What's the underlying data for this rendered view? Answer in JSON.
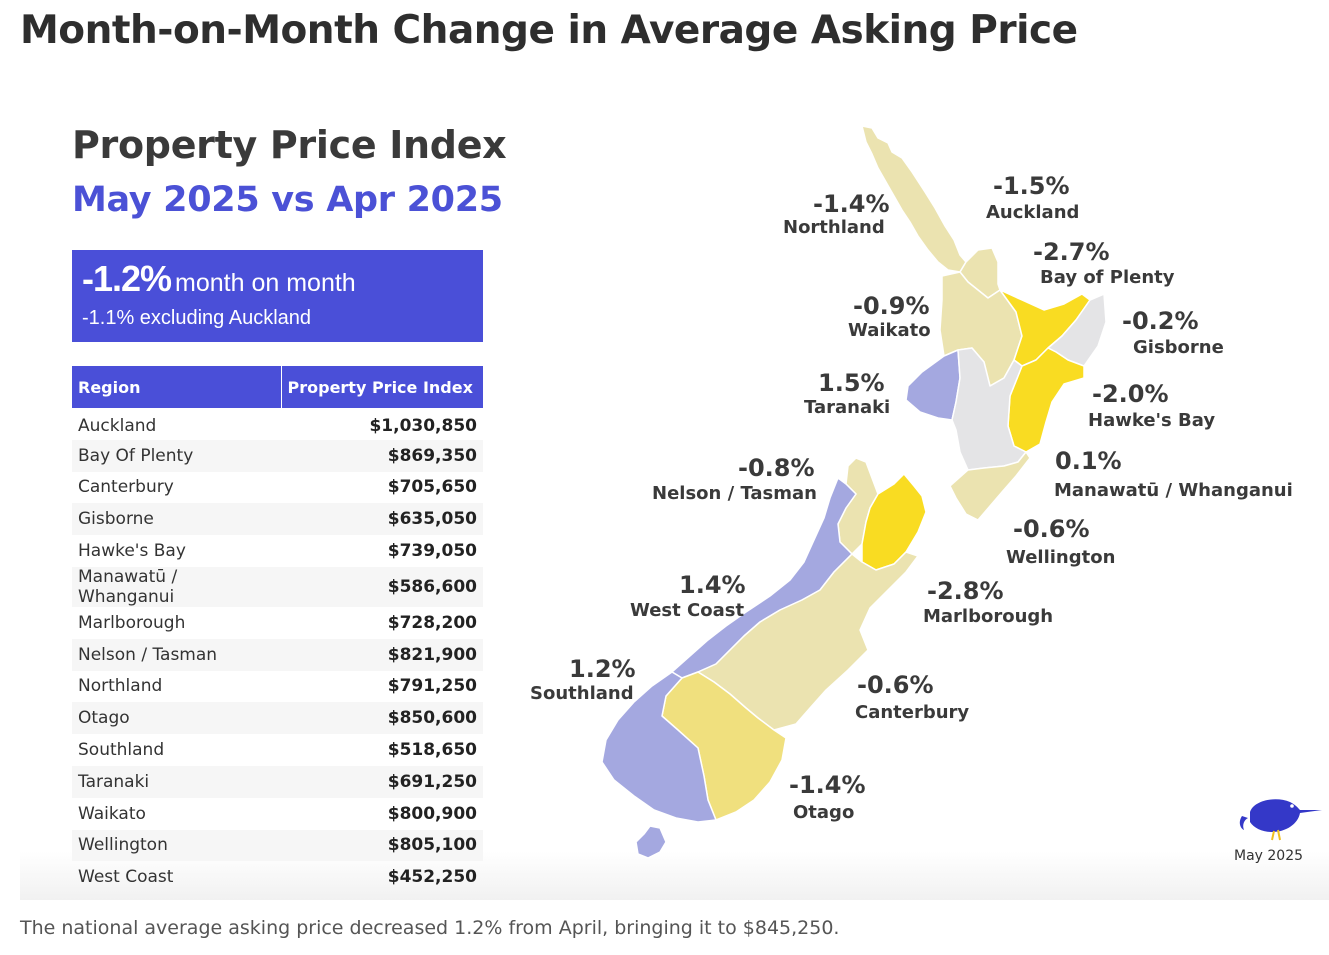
{
  "page": {
    "title": "Month-on-Month Change in Average Asking Price",
    "caption": "The national average asking price decreased 1.2% from April, bringing it to $845,250."
  },
  "infographic": {
    "title": "Property Price Index",
    "subtitle": "May 2025 vs Apr 2025",
    "summary": {
      "headline_value": "-1.2%",
      "headline_text": "month on month",
      "sub_text": "-1.1% excluding Auckland"
    },
    "table": {
      "headers": [
        "Region",
        "Property Price Index"
      ],
      "rows": [
        {
          "region": "Auckland",
          "value": "$1,030,850"
        },
        {
          "region": "Bay Of Plenty",
          "value": "$869,350"
        },
        {
          "region": "Canterbury",
          "value": "$705,650"
        },
        {
          "region": "Gisborne",
          "value": "$635,050"
        },
        {
          "region": "Hawke's Bay",
          "value": "$739,050"
        },
        {
          "region": "Manawatū / Whanganui",
          "value": "$586,600"
        },
        {
          "region": "Marlborough",
          "value": "$728,200"
        },
        {
          "region": "Nelson / Tasman",
          "value": "$821,900"
        },
        {
          "region": "Northland",
          "value": "$791,250"
        },
        {
          "region": "Otago",
          "value": "$850,600"
        },
        {
          "region": "Southland",
          "value": "$518,650"
        },
        {
          "region": "Taranaki",
          "value": "$691,250"
        },
        {
          "region": "Waikato",
          "value": "$800,900"
        },
        {
          "region": "Wellington",
          "value": "$805,100"
        },
        {
          "region": "West Coast",
          "value": "$452,250"
        }
      ]
    },
    "logo_date": "May 2025"
  },
  "map_labels": {
    "northland": {
      "pct": "-1.4%",
      "name": "Northland"
    },
    "auckland": {
      "pct": "-1.5%",
      "name": "Auckland"
    },
    "bay_of_plenty": {
      "pct": "-2.7%",
      "name": "Bay of Plenty"
    },
    "waikato": {
      "pct": "-0.9%",
      "name": "Waikato"
    },
    "gisborne": {
      "pct": "-0.2%",
      "name": "Gisborne"
    },
    "taranaki": {
      "pct": "1.5%",
      "name": "Taranaki"
    },
    "hawkes_bay": {
      "pct": "-2.0%",
      "name": "Hawke's Bay"
    },
    "manawatu": {
      "pct": "0.1%",
      "name": "Manawatū / Whanganui"
    },
    "nelson": {
      "pct": "-0.8%",
      "name": "Nelson / Tasman"
    },
    "wellington": {
      "pct": "-0.6%",
      "name": "Wellington"
    },
    "west_coast": {
      "pct": "1.4%",
      "name": "West Coast"
    },
    "marlborough": {
      "pct": "-2.8%",
      "name": "Marlborough"
    },
    "southland": {
      "pct": "1.2%",
      "name": "Southland"
    },
    "canterbury": {
      "pct": "-0.6%",
      "name": "Canterbury"
    },
    "otago": {
      "pct": "-1.4%",
      "name": "Otago"
    }
  },
  "colors": {
    "accent": "#4a4fd8",
    "decrease_strong": "#f9dc22",
    "decrease_medium": "#f0e07e",
    "decrease_light": "#ebe3b0",
    "flat": "#e4e4e6",
    "increase": "#a4a8e0"
  }
}
